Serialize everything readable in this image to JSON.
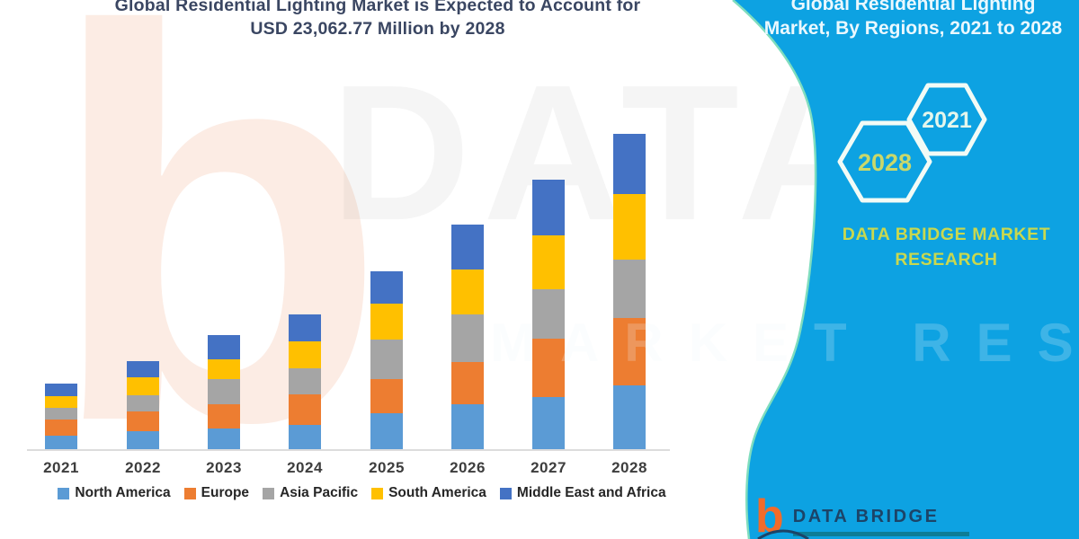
{
  "header": {
    "title_line1": "Global Residential Lighting Market is Expected to Account for",
    "title_line2": "USD 23,062.77 Million by 2028"
  },
  "panel": {
    "title_line1": "Global Residential Lighting",
    "title_line2": "Market, By Regions, 2021 to 2028",
    "hexagon_back_label": "2028",
    "hexagon_front_label": "2021",
    "brand_line1": "DATA BRIDGE MARKET",
    "brand_line2": "RESEARCH",
    "background_color": "#0da2e2",
    "edge_accent_color": "#7fddbe",
    "brand_text_color": "#c9d84f"
  },
  "logo": {
    "glyph": "b",
    "name_text": "DATA BRIDGE",
    "orange": "#f26b2a",
    "navy": "#1c4468",
    "teal": "#0d7d96"
  },
  "watermarks": {
    "big_letter": "b",
    "row1": "DATA BRIDGE",
    "row2": "MARKET RESEARCH"
  },
  "chart_data": {
    "type": "bar",
    "stacked": true,
    "title": "Global Residential Lighting Market is Expected to Account for USD 23,062.77 Million by 2028",
    "unit": "USD Million",
    "categories": [
      "2021",
      "2022",
      "2023",
      "2024",
      "2025",
      "2026",
      "2027",
      "2028"
    ],
    "series": [
      {
        "name": "North America",
        "color": "#5b9bd5",
        "values": [
          986,
          1314,
          1511,
          1774,
          2628,
          3285,
          3811,
          4665
        ]
      },
      {
        "name": "Europe",
        "color": "#ed7d31",
        "values": [
          1183,
          1446,
          1774,
          2234,
          2497,
          3088,
          4271,
          4928
        ]
      },
      {
        "name": "Asia Pacific",
        "color": "#a5a5a5",
        "values": [
          854,
          1183,
          1840,
          1906,
          2891,
          3482,
          3614,
          4271
        ]
      },
      {
        "name": "South America",
        "color": "#ffc000",
        "values": [
          854,
          1314,
          1446,
          1971,
          2628,
          3285,
          3943,
          4797
        ]
      },
      {
        "name": "Middle East and Africa",
        "color": "#4472c4",
        "values": [
          920,
          1183,
          1774,
          1971,
          2365,
          3285,
          4074,
          4401.77
        ]
      }
    ],
    "totals_estimated": [
      4797,
      6440,
      8345,
      9856,
      13009,
      16425,
      19713,
      23062.77
    ],
    "value_note": "Segment values estimated from bar heights; 2028 total stated as USD 23,062.77 Million",
    "xlabel": "",
    "ylabel": "",
    "y_axis_visible": false,
    "grid": false,
    "legend_position": "bottom"
  }
}
